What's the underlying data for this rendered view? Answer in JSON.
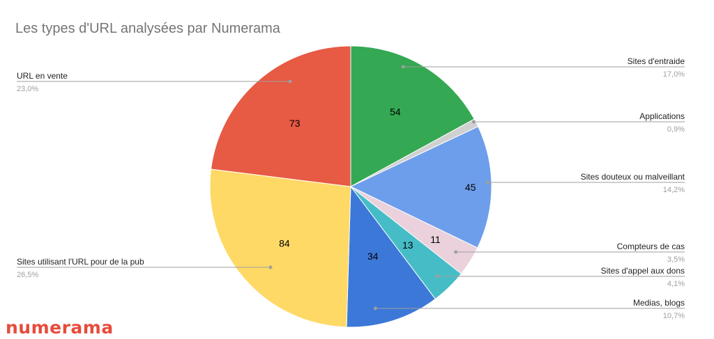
{
  "chart_data": {
    "type": "pie",
    "title": "Les types d'URL analysées par Numerama",
    "slices": [
      {
        "name": "Sites d'entraide",
        "value": 54,
        "label": "54",
        "percent_label": "17,0%",
        "color": "#34a853"
      },
      {
        "name": "Applications",
        "value": 3,
        "label": "",
        "percent_label": "0,9%",
        "color": "#d0d0d0"
      },
      {
        "name": "Sites douteux ou malveillant",
        "value": 45,
        "label": "45",
        "percent_label": "14,2%",
        "color": "#6d9eeb"
      },
      {
        "name": "Compteurs de cas",
        "value": 11,
        "label": "11",
        "percent_label": "3,5%",
        "color": "#ead1dc"
      },
      {
        "name": "Sites d'appel aux dons",
        "value": 13,
        "label": "13",
        "percent_label": "4,1%",
        "color": "#46bdc6"
      },
      {
        "name": "Medias, blogs",
        "value": 34,
        "label": "34",
        "percent_label": "10,7%",
        "color": "#3c78d8"
      },
      {
        "name": "Sites utilisant l'URL pour de la pub",
        "value": 84,
        "label": "84",
        "percent_label": "26,5%",
        "color": "#ffd966"
      },
      {
        "name": "URL en vente",
        "value": 73,
        "label": "73",
        "percent_label": "23,0%",
        "color": "#e75a44"
      }
    ],
    "legend": "callout-labels"
  },
  "brand": {
    "logo_text": "numerama",
    "logo_color": "#e74c3c"
  }
}
